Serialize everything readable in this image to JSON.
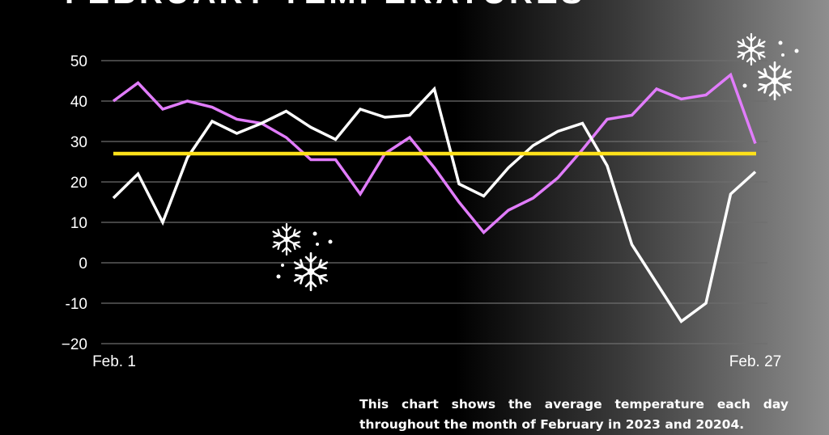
{
  "chart_data": {
    "type": "line",
    "title": "FEBRUARY TEMPERATURES",
    "caption": "This chart shows the average temperature each day throughout the month of February in 2023 and 20204.",
    "x": [
      1,
      2,
      3,
      4,
      5,
      6,
      7,
      8,
      9,
      10,
      11,
      12,
      13,
      14,
      15,
      16,
      17,
      18,
      19,
      20,
      21,
      22,
      23,
      24,
      25,
      26,
      27
    ],
    "x_tick_labels": [
      "Feb. 1",
      "Feb. 27"
    ],
    "y_ticks": [
      "50",
      "40",
      "30",
      "20",
      "10",
      "0",
      "-10",
      "−20"
    ],
    "ylim": [
      -20,
      50
    ],
    "grid": true,
    "series": [
      {
        "color": "#e17cfb",
        "values": [
          40,
          44.5,
          38,
          40,
          38.5,
          35.5,
          34.5,
          31,
          25.5,
          25.5,
          17,
          27,
          31,
          23.5,
          15,
          7.5,
          13,
          16,
          21,
          28,
          35.5,
          36.5,
          43,
          40.5,
          41.5,
          46.5,
          29.5
        ]
      },
      {
        "color": "#ffffff",
        "values": [
          16,
          22,
          10,
          26,
          35,
          32,
          34.5,
          37.5,
          33.5,
          30.5,
          38,
          36,
          36.5,
          43,
          19.5,
          16.5,
          23.5,
          29,
          32.5,
          34.5,
          24,
          4.5,
          -5,
          -14.5,
          -10,
          17,
          22.5
        ]
      }
    ],
    "reference_line": {
      "color": "#ffe11a",
      "value": 27
    }
  },
  "decorations": [
    "snowflake-icon",
    "snowflake-icon",
    "snowflake-icon",
    "snowflake-icon"
  ]
}
